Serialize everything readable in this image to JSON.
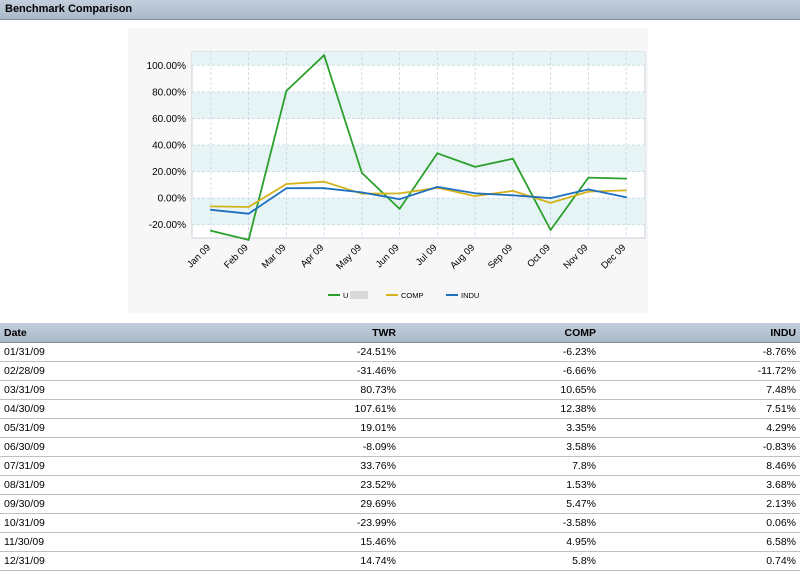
{
  "header": {
    "title": "Benchmark Comparison"
  },
  "chart_data": {
    "type": "line",
    "categories": [
      "Jan 09",
      "Feb 09",
      "Mar 09",
      "Apr 09",
      "May 09",
      "Jun 09",
      "Jul 09",
      "Aug 09",
      "Sep 09",
      "Oct 09",
      "Nov 09",
      "Dec 09"
    ],
    "series": [
      {
        "name": "U",
        "color": "#2ca02c",
        "values": [
          -24.51,
          -31.46,
          80.73,
          107.61,
          19.01,
          -8.09,
          33.76,
          23.52,
          29.69,
          -23.99,
          15.46,
          14.74
        ]
      },
      {
        "name": "COMP",
        "color": "#d4b21a",
        "values": [
          -6.23,
          -6.66,
          10.65,
          12.38,
          3.35,
          3.58,
          7.8,
          1.53,
          5.47,
          -3.58,
          4.95,
          5.8
        ]
      },
      {
        "name": "INDU",
        "color": "#1f6fbf",
        "values": [
          -8.76,
          -11.72,
          7.48,
          7.51,
          4.29,
          -0.83,
          8.46,
          3.68,
          2.13,
          0.06,
          6.58,
          0.74
        ]
      }
    ],
    "yticks": [
      "100.00%",
      "80.00%",
      "60.00%",
      "40.00%",
      "20.00%",
      "0.00%",
      "-20.00%"
    ],
    "ylim": [
      -30,
      110
    ],
    "grid": true,
    "legend_position": "bottom"
  },
  "table": {
    "columns": [
      "Date",
      "TWR",
      "COMP",
      "INDU"
    ],
    "rows": [
      [
        "01/31/09",
        "-24.51%",
        "-6.23%",
        "-8.76%"
      ],
      [
        "02/28/09",
        "-31.46%",
        "-6.66%",
        "-11.72%"
      ],
      [
        "03/31/09",
        "80.73%",
        "10.65%",
        "7.48%"
      ],
      [
        "04/30/09",
        "107.61%",
        "12.38%",
        "7.51%"
      ],
      [
        "05/31/09",
        "19.01%",
        "3.35%",
        "4.29%"
      ],
      [
        "06/30/09",
        "-8.09%",
        "3.58%",
        "-0.83%"
      ],
      [
        "07/31/09",
        "33.76%",
        "7.8%",
        "8.46%"
      ],
      [
        "08/31/09",
        "23.52%",
        "1.53%",
        "3.68%"
      ],
      [
        "09/30/09",
        "29.69%",
        "5.47%",
        "2.13%"
      ],
      [
        "10/31/09",
        "-23.99%",
        "-3.58%",
        "0.06%"
      ],
      [
        "11/30/09",
        "15.46%",
        "4.95%",
        "6.58%"
      ],
      [
        "12/31/09",
        "14.74%",
        "5.8%",
        "0.74%"
      ]
    ]
  }
}
